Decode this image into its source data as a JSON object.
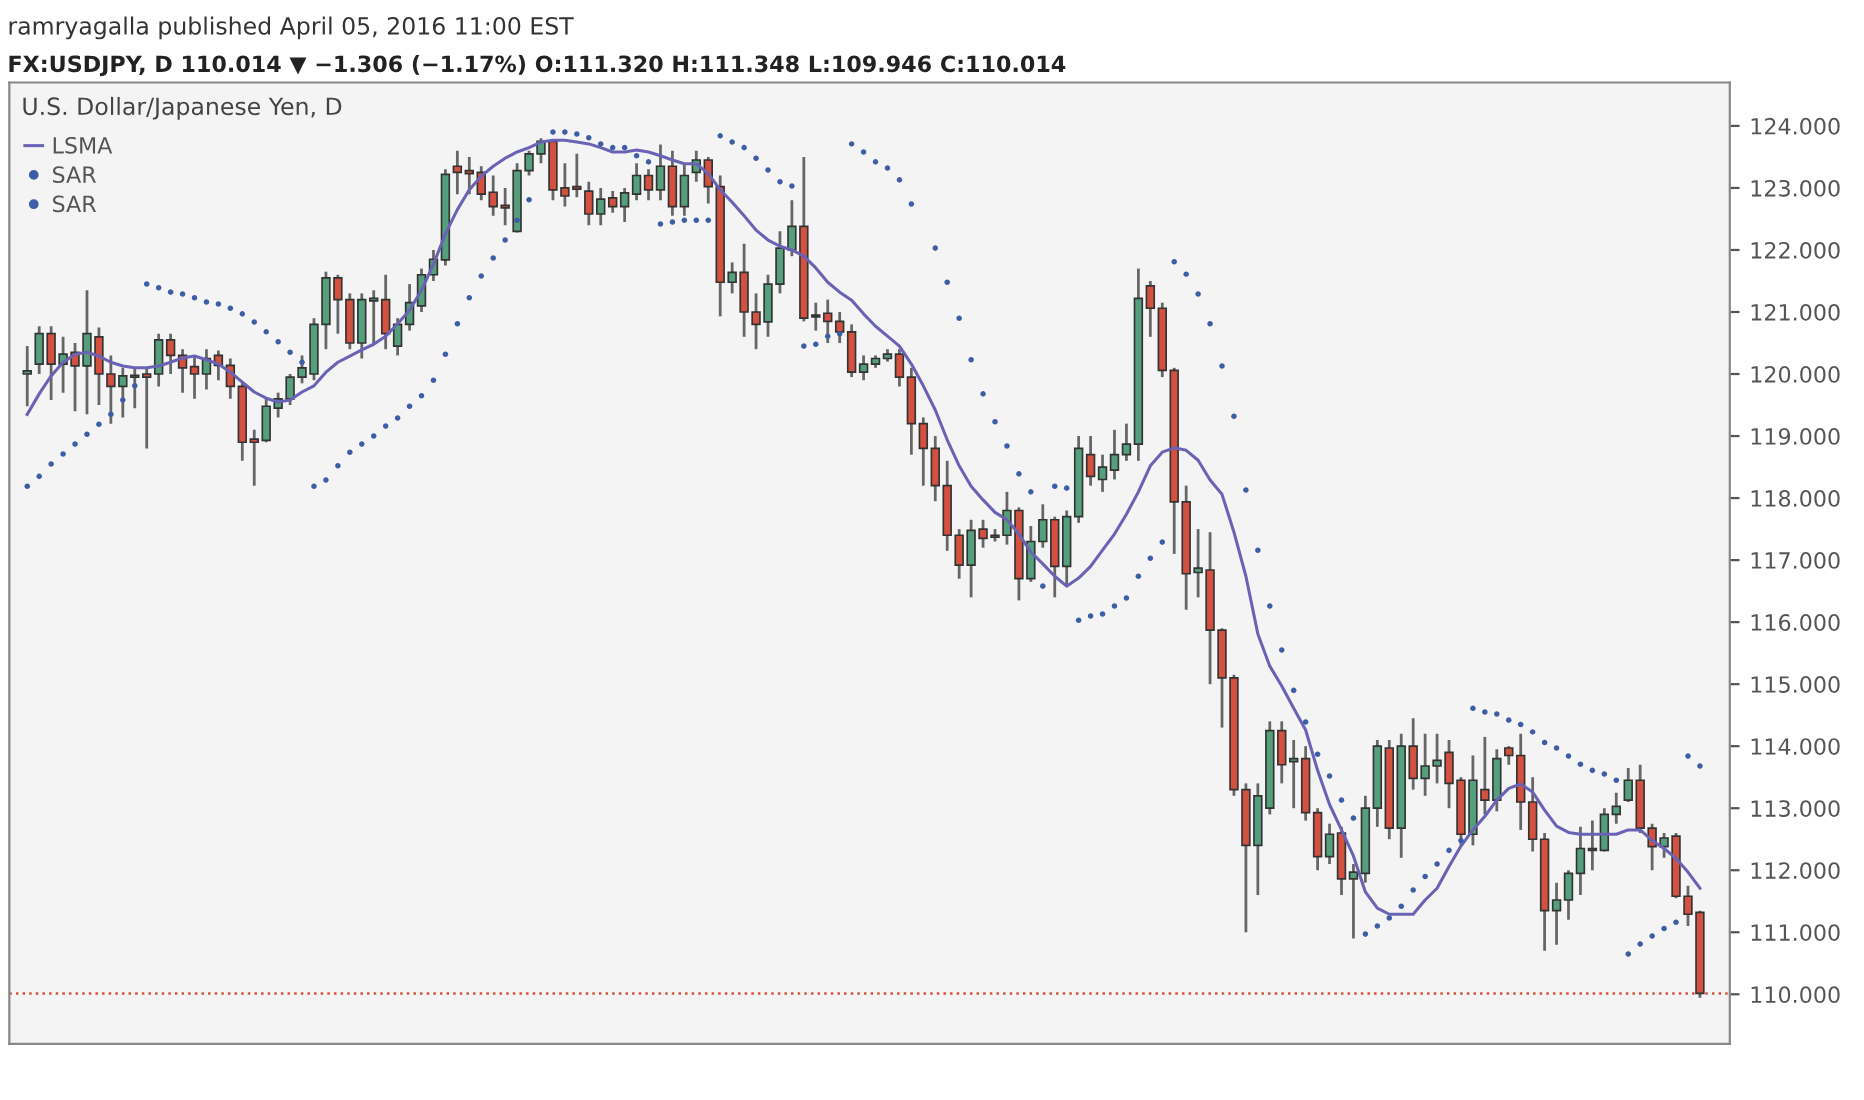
{
  "chart_data": {
    "type": "candlestick",
    "title": "U.S. Dollar/Japanese Yen, D",
    "subtitle": "ramryagalla published April 05, 2016 11:00 EST",
    "annotations": [
      "FX:USDJPY, D 110.014 ▼ −1.306 (−1.17%) O:111.320 H:111.348 L:109.946 C:110.014"
    ],
    "categories": [
      null,
      null,
      null,
      null,
      null,
      null,
      null,
      null,
      null,
      null,
      null,
      null,
      null,
      null,
      null,
      null,
      null,
      null,
      null,
      null,
      null,
      null,
      null,
      null,
      null,
      null,
      null,
      null,
      null,
      null,
      null,
      null,
      null,
      null,
      null,
      null,
      null,
      null,
      null,
      null,
      null,
      null,
      null,
      null,
      null,
      null,
      null,
      null,
      null,
      null,
      null,
      null,
      null,
      null,
      null,
      null,
      null,
      null,
      null,
      null,
      null,
      null,
      null,
      null,
      null,
      null,
      null,
      null,
      null,
      null,
      null,
      null,
      null,
      null,
      null,
      null,
      null,
      null,
      null,
      null,
      null,
      null,
      null,
      null,
      null,
      null,
      null,
      null,
      null,
      null,
      null,
      null,
      null,
      null,
      null,
      null,
      null,
      null,
      null,
      null,
      null,
      null,
      null,
      null,
      null,
      null,
      null,
      null,
      null,
      null,
      null,
      null,
      null,
      null,
      null,
      null,
      null,
      null,
      null,
      null,
      null,
      null,
      null,
      null,
      null,
      null,
      null,
      null,
      null,
      null,
      null,
      null,
      null,
      null,
      null,
      null,
      null,
      null,
      null,
      null,
      null
    ],
    "colors": [
      "#55a07c",
      "#55a07c",
      "#d4513f",
      "#55a07c",
      "#d4513f",
      "#55a07c",
      "#d4513f",
      "#d4513f",
      "#55a07c",
      "#55a07c",
      "#d4513f",
      "#55a07c",
      "#d4513f",
      "#d4513f",
      "#d4513f",
      "#55a07c",
      "#d4513f",
      "#d4513f",
      "#d4513f",
      "#d4513f",
      "#55a07c",
      "#55a07c",
      "#55a07c",
      "#55a07c",
      "#55a07c",
      "#55a07c",
      "#d4513f",
      "#d4513f",
      "#55a07c",
      "#55a07c",
      "#d4513f",
      "#55a07c",
      "#55a07c",
      "#55a07c",
      "#55a07c",
      "#55a07c",
      "#d4513f",
      "#d4513f",
      "#d4513f",
      "#d4513f",
      "#d4513f",
      "#55a07c",
      "#55a07c",
      "#55a07c",
      "#d4513f",
      "#d4513f",
      "#d4513f",
      "#d4513f",
      "#55a07c",
      "#d4513f",
      "#55a07c",
      "#55a07c",
      "#d4513f",
      "#55a07c",
      "#d4513f",
      "#55a07c",
      "#55a07c",
      "#d4513f",
      "#d4513f",
      "#55a07c",
      "#d4513f",
      "#d4513f",
      "#55a07c",
      "#55a07c",
      "#55a07c",
      "#d4513f",
      "#d4513f",
      "#d4513f",
      "#d4513f",
      "#d4513f",
      "#55a07c",
      "#55a07c",
      "#55a07c",
      "#d4513f",
      "#d4513f",
      "#d4513f",
      "#d4513f",
      "#d4513f",
      "#d4513f",
      "#55a07c",
      "#d4513f",
      "#55a07c",
      "#55a07c",
      "#d4513f",
      "#55a07c",
      "#55a07c",
      "#d4513f",
      "#55a07c",
      "#55a07c",
      "#d4513f",
      "#55a07c",
      "#55a07c",
      "#55a07c",
      "#55a07c",
      "#d4513f",
      "#d4513f",
      "#d4513f",
      "#d4513f",
      "#55a07c",
      "#d4513f",
      "#d4513f",
      "#d4513f",
      "#d4513f",
      "#55a07c",
      "#55a07c",
      "#d4513f",
      "#55a07c",
      "#d4513f",
      "#d4513f",
      "#55a07c",
      "#d4513f",
      "#55a07c",
      "#55a07c",
      "#55a07c",
      "#d4513f",
      "#55a07c",
      "#d4513f",
      "#55a07c",
      "#55a07c",
      "#d4513f",
      "#d4513f",
      "#55a07c",
      "#d4513f",
      "#55a07c",
      "#d4513f",
      "#d4513f",
      "#d4513f",
      "#d4513f",
      "#55a07c",
      "#55a07c",
      "#55a07c",
      "#55a07c",
      "#55a07c",
      "#55a07c",
      "#55a07c",
      "#d4513f",
      "#d4513f",
      "#55a07c",
      "#d4513f",
      "#d4513f",
      "#d4513f"
    ],
    "ohlc": [
      [
        120.0,
        120.45,
        119.48,
        120.05
      ],
      [
        120.16,
        120.77,
        120.0,
        120.65
      ],
      [
        120.65,
        120.77,
        119.58,
        120.16
      ],
      [
        120.16,
        120.6,
        119.7,
        120.32
      ],
      [
        120.35,
        120.5,
        119.4,
        120.13
      ],
      [
        120.13,
        121.35,
        119.35,
        120.65
      ],
      [
        120.6,
        120.75,
        119.5,
        120.0
      ],
      [
        120.0,
        120.3,
        119.2,
        119.8
      ],
      [
        119.8,
        120.1,
        119.3,
        119.97
      ],
      [
        119.95,
        120.1,
        119.45,
        119.98
      ],
      [
        120.0,
        120.1,
        118.8,
        119.95
      ],
      [
        120.0,
        120.65,
        119.8,
        120.55
      ],
      [
        120.55,
        120.65,
        120.0,
        120.3
      ],
      [
        120.3,
        120.4,
        119.7,
        120.1
      ],
      [
        120.12,
        120.3,
        119.6,
        120.0
      ],
      [
        120.0,
        120.4,
        119.75,
        120.25
      ],
      [
        120.3,
        120.38,
        119.9,
        120.14
      ],
      [
        120.14,
        120.25,
        119.6,
        119.8
      ],
      [
        119.8,
        119.85,
        118.6,
        118.9
      ],
      [
        118.95,
        119.1,
        118.2,
        118.9
      ],
      [
        118.93,
        119.6,
        118.9,
        119.48
      ],
      [
        119.45,
        119.7,
        119.3,
        119.6
      ],
      [
        119.6,
        120.0,
        119.5,
        119.95
      ],
      [
        119.95,
        120.3,
        119.85,
        120.1
      ],
      [
        120.0,
        120.9,
        119.9,
        120.8
      ],
      [
        120.8,
        121.65,
        120.4,
        121.55
      ],
      [
        121.55,
        121.6,
        120.65,
        121.2
      ],
      [
        121.2,
        121.3,
        120.4,
        120.5
      ],
      [
        120.5,
        121.3,
        120.25,
        121.2
      ],
      [
        121.18,
        121.35,
        120.5,
        121.22
      ],
      [
        121.2,
        121.6,
        120.4,
        120.65
      ],
      [
        120.45,
        120.9,
        120.3,
        120.8
      ],
      [
        120.8,
        121.45,
        120.7,
        121.15
      ],
      [
        121.1,
        121.7,
        121.0,
        121.6
      ],
      [
        121.6,
        122.0,
        121.5,
        121.85
      ],
      [
        121.84,
        123.3,
        121.75,
        123.22
      ],
      [
        123.35,
        123.6,
        122.9,
        123.25
      ],
      [
        123.28,
        123.5,
        122.9,
        123.23
      ],
      [
        123.25,
        123.35,
        122.8,
        122.9
      ],
      [
        122.93,
        123.2,
        122.55,
        122.7
      ],
      [
        122.72,
        123.0,
        122.4,
        122.68
      ],
      [
        122.3,
        123.4,
        122.28,
        123.28
      ],
      [
        123.28,
        123.6,
        123.2,
        123.55
      ],
      [
        123.55,
        123.8,
        123.4,
        123.75
      ],
      [
        123.75,
        123.78,
        122.8,
        122.97
      ],
      [
        123.0,
        123.4,
        122.7,
        122.87
      ],
      [
        123.02,
        123.55,
        122.85,
        122.98
      ],
      [
        122.95,
        123.1,
        122.4,
        122.58
      ],
      [
        122.58,
        123.0,
        122.4,
        122.82
      ],
      [
        122.84,
        122.95,
        122.6,
        122.7
      ],
      [
        122.7,
        123.0,
        122.45,
        122.92
      ],
      [
        122.9,
        123.4,
        122.8,
        123.2
      ],
      [
        123.2,
        123.3,
        122.8,
        122.97
      ],
      [
        122.97,
        123.7,
        122.8,
        123.35
      ],
      [
        123.35,
        123.6,
        122.55,
        122.7
      ],
      [
        122.7,
        123.4,
        122.55,
        123.2
      ],
      [
        123.25,
        123.6,
        123.1,
        123.45
      ],
      [
        123.45,
        123.5,
        122.75,
        123.02
      ],
      [
        123.02,
        123.2,
        120.93,
        121.48
      ],
      [
        121.48,
        121.8,
        121.3,
        121.64
      ],
      [
        121.64,
        122.1,
        120.6,
        121.0
      ],
      [
        121.0,
        121.3,
        120.4,
        120.8
      ],
      [
        120.84,
        121.6,
        120.6,
        121.45
      ],
      [
        121.45,
        122.3,
        121.3,
        122.03
      ],
      [
        122.0,
        122.8,
        121.9,
        122.38
      ],
      [
        122.38,
        123.5,
        120.85,
        120.9
      ],
      [
        120.95,
        121.15,
        120.7,
        120.92
      ],
      [
        120.98,
        121.2,
        120.5,
        120.85
      ],
      [
        120.85,
        121.0,
        120.5,
        120.68
      ],
      [
        120.68,
        120.8,
        119.95,
        120.03
      ],
      [
        120.03,
        120.3,
        119.9,
        120.16
      ],
      [
        120.16,
        120.3,
        120.1,
        120.25
      ],
      [
        120.25,
        120.4,
        120.2,
        120.32
      ],
      [
        120.32,
        120.4,
        119.8,
        119.95
      ],
      [
        119.95,
        120.1,
        118.7,
        119.2
      ],
      [
        119.2,
        119.3,
        118.2,
        118.8
      ],
      [
        118.8,
        119.0,
        117.95,
        118.2
      ],
      [
        118.2,
        118.6,
        117.15,
        117.4
      ],
      [
        117.4,
        117.5,
        116.7,
        116.92
      ],
      [
        116.92,
        117.65,
        116.4,
        117.48
      ],
      [
        117.5,
        117.65,
        117.2,
        117.35
      ],
      [
        117.37,
        117.5,
        117.3,
        117.4
      ],
      [
        117.4,
        118.1,
        117.25,
        117.8
      ],
      [
        117.8,
        117.85,
        116.35,
        116.7
      ],
      [
        116.7,
        117.55,
        116.65,
        117.3
      ],
      [
        117.3,
        117.9,
        117.2,
        117.65
      ],
      [
        117.65,
        117.7,
        116.4,
        116.9
      ],
      [
        116.9,
        117.8,
        116.6,
        117.7
      ],
      [
        117.7,
        119.0,
        117.6,
        118.8
      ],
      [
        118.7,
        119.0,
        118.2,
        118.35
      ],
      [
        118.3,
        118.7,
        118.1,
        118.5
      ],
      [
        118.45,
        119.1,
        118.3,
        118.7
      ],
      [
        118.7,
        119.2,
        118.6,
        118.87
      ],
      [
        118.87,
        121.7,
        118.6,
        121.22
      ],
      [
        121.42,
        121.5,
        120.6,
        121.06
      ],
      [
        121.06,
        121.15,
        119.95,
        120.06
      ],
      [
        120.06,
        120.1,
        117.1,
        117.94
      ],
      [
        117.94,
        118.2,
        116.2,
        116.78
      ],
      [
        116.8,
        117.5,
        116.4,
        116.87
      ],
      [
        116.84,
        117.45,
        115.0,
        115.87
      ],
      [
        115.87,
        115.9,
        114.3,
        115.1
      ],
      [
        115.1,
        115.15,
        113.2,
        113.3
      ],
      [
        113.3,
        113.4,
        111.0,
        112.4
      ],
      [
        112.4,
        113.4,
        111.6,
        113.2
      ],
      [
        113.0,
        114.4,
        112.9,
        114.25
      ],
      [
        114.25,
        114.4,
        113.4,
        113.7
      ],
      [
        113.75,
        114.1,
        113.0,
        113.8
      ],
      [
        113.8,
        114.0,
        112.8,
        112.93
      ],
      [
        112.93,
        113.0,
        112.0,
        112.22
      ],
      [
        112.22,
        112.75,
        112.1,
        112.58
      ],
      [
        112.6,
        112.7,
        111.6,
        111.86
      ],
      [
        111.86,
        112.1,
        110.9,
        111.97
      ],
      [
        111.95,
        113.2,
        111.8,
        113.0
      ],
      [
        113.0,
        114.1,
        112.7,
        114.0
      ],
      [
        113.97,
        114.1,
        112.5,
        112.68
      ],
      [
        112.68,
        114.2,
        112.2,
        114.0
      ],
      [
        114.0,
        114.45,
        113.3,
        113.48
      ],
      [
        113.48,
        114.2,
        113.2,
        113.68
      ],
      [
        113.68,
        114.2,
        113.4,
        113.77
      ],
      [
        113.9,
        114.1,
        113.0,
        113.4
      ],
      [
        113.45,
        113.5,
        112.4,
        112.58
      ],
      [
        112.58,
        113.85,
        112.4,
        113.45
      ],
      [
        113.3,
        114.15,
        112.9,
        113.13
      ],
      [
        113.13,
        113.95,
        112.95,
        113.8
      ],
      [
        113.97,
        114.0,
        113.7,
        113.85
      ],
      [
        113.85,
        114.2,
        112.65,
        113.1
      ],
      [
        113.1,
        113.5,
        112.3,
        112.5
      ],
      [
        112.5,
        112.6,
        110.7,
        111.35
      ],
      [
        111.35,
        111.8,
        110.8,
        111.52
      ],
      [
        111.52,
        112.0,
        111.2,
        111.95
      ],
      [
        111.95,
        112.7,
        111.6,
        112.35
      ],
      [
        112.32,
        112.8,
        112.0,
        112.35
      ],
      [
        112.32,
        113.0,
        112.3,
        112.9
      ],
      [
        112.9,
        113.25,
        112.75,
        113.03
      ],
      [
        113.13,
        113.65,
        113.1,
        113.45
      ],
      [
        113.45,
        113.7,
        112.6,
        112.68
      ],
      [
        112.68,
        112.75,
        112.0,
        112.38
      ],
      [
        112.38,
        112.6,
        112.2,
        112.52
      ],
      [
        112.55,
        112.6,
        111.55,
        111.58
      ],
      [
        111.58,
        111.75,
        111.1,
        111.29
      ],
      [
        111.32,
        111.348,
        109.946,
        110.014
      ]
    ],
    "series": [
      {
        "name": "LSMA",
        "type": "line",
        "color": "#6a63b5",
        "values": [
          119.35,
          119.68,
          119.97,
          120.19,
          120.32,
          120.35,
          120.29,
          120.19,
          120.13,
          120.1,
          120.1,
          120.13,
          120.19,
          120.26,
          120.29,
          120.23,
          120.16,
          120.03,
          119.87,
          119.71,
          119.61,
          119.55,
          119.58,
          119.71,
          119.81,
          120.03,
          120.19,
          120.29,
          120.39,
          120.48,
          120.61,
          120.81,
          121.03,
          121.35,
          121.77,
          122.26,
          122.65,
          122.97,
          123.19,
          123.35,
          123.48,
          123.58,
          123.65,
          123.74,
          123.77,
          123.77,
          123.74,
          123.71,
          123.65,
          123.58,
          123.58,
          123.61,
          123.58,
          123.52,
          123.45,
          123.39,
          123.39,
          123.23,
          122.97,
          122.77,
          122.55,
          122.32,
          122.16,
          122.06,
          122.0,
          121.9,
          121.71,
          121.48,
          121.32,
          121.19,
          120.97,
          120.77,
          120.61,
          120.45,
          120.16,
          119.81,
          119.42,
          118.94,
          118.52,
          118.19,
          117.97,
          117.77,
          117.65,
          117.42,
          117.13,
          116.94,
          116.74,
          116.58,
          116.71,
          116.9,
          117.16,
          117.42,
          117.74,
          118.1,
          118.52,
          118.74,
          118.81,
          118.77,
          118.61,
          118.29,
          118.06,
          117.45,
          116.74,
          115.81,
          115.29,
          114.97,
          114.61,
          114.26,
          113.61,
          113.06,
          112.65,
          112.23,
          111.65,
          111.39,
          111.29,
          111.29,
          111.29,
          111.52,
          111.71,
          112.06,
          112.39,
          112.65,
          112.87,
          113.13,
          113.32,
          113.39,
          113.26,
          112.97,
          112.71,
          112.61,
          112.58,
          112.58,
          112.58,
          112.58,
          112.65,
          112.65,
          112.48,
          112.35,
          112.19,
          111.97,
          111.71
        ]
      },
      {
        "name": "SAR",
        "type": "scatter",
        "color": "#3d5ea6",
        "values": [
          118.19,
          118.35,
          118.55,
          118.71,
          118.87,
          119.03,
          119.19,
          119.35,
          119.58,
          119.81,
          121.45,
          121.39,
          121.32,
          121.29,
          121.23,
          121.16,
          121.13,
          121.06,
          120.97,
          120.84,
          120.68,
          120.52,
          120.35,
          120.19,
          118.19,
          118.29,
          118.52,
          118.74,
          118.87,
          119.0,
          119.16,
          119.29,
          119.48,
          119.65,
          119.9,
          120.32,
          120.81,
          121.23,
          121.58,
          121.87,
          122.16,
          122.48,
          122.81,
          null,
          123.9,
          123.9,
          123.87,
          123.81,
          123.71,
          123.65,
          123.65,
          123.52,
          123.42,
          122.42,
          122.45,
          122.48,
          122.48,
          122.48,
          123.84,
          123.74,
          123.65,
          123.48,
          123.29,
          123.1,
          123.03,
          120.45,
          120.48,
          120.61,
          120.65,
          123.71,
          123.58,
          123.42,
          123.32,
          123.13,
          122.74,
          null,
          122.03,
          121.48,
          120.9,
          120.23,
          119.68,
          119.23,
          118.84,
          118.39,
          118.1,
          116.58,
          null,
          null,
          116.03,
          116.1,
          116.13,
          116.26,
          116.39,
          116.74,
          117.03,
          117.29,
          121.81,
          121.61,
          121.29,
          120.81,
          120.13,
          119.32,
          118.13,
          117.16,
          116.26,
          115.55,
          114.9,
          114.39,
          113.87,
          113.52,
          113.13,
          112.84,
          110.97,
          111.1,
          111.23,
          111.42,
          111.68,
          111.9,
          112.1,
          112.32,
          112.48,
          114.61,
          114.55,
          114.52,
          114.42,
          114.35,
          114.23,
          114.06,
          113.97,
          113.84,
          113.71,
          113.61,
          113.55,
          113.45,
          110.65,
          110.81,
          110.94,
          111.06,
          111.16,
          113.84,
          113.68
        ]
      },
      {
        "name": "SAR",
        "type": "scatter",
        "color": "#3d5ea6",
        "values": [
          null,
          null,
          null,
          null,
          null,
          null,
          null,
          null,
          null,
          null,
          null,
          null,
          null,
          null,
          null,
          null,
          null,
          null,
          null,
          null,
          null,
          null,
          null,
          null,
          null,
          null,
          null,
          null,
          null,
          null,
          null,
          null,
          null,
          null,
          null,
          null,
          null,
          null,
          null,
          null,
          null,
          null,
          null,
          null,
          null,
          null,
          null,
          null,
          null,
          null,
          null,
          null,
          null,
          null,
          null,
          null,
          null,
          null,
          null,
          null,
          null,
          null,
          null,
          null,
          null,
          null,
          null,
          null,
          null,
          null,
          null,
          null,
          null,
          null,
          null,
          null,
          null,
          null,
          null,
          null,
          null,
          null,
          null,
          null,
          null,
          null,
          118.19,
          118.16,
          null,
          null,
          null,
          null,
          null,
          null,
          null,
          null,
          null,
          null,
          null,
          null,
          null,
          null,
          null,
          null,
          null,
          null,
          null,
          null,
          null,
          null,
          null,
          null,
          null,
          null,
          null,
          null,
          null,
          null,
          null,
          null,
          null,
          null,
          null,
          null,
          null,
          null,
          null,
          null,
          null,
          null,
          null,
          null,
          null,
          null,
          null,
          null,
          null,
          null,
          null,
          null,
          null
        ]
      }
    ],
    "ylim": [
      109.2,
      124.7
    ],
    "yticks": [
      {
        "value": 110,
        "label": "110.000"
      },
      {
        "value": 111,
        "label": "111.000"
      },
      {
        "value": 112,
        "label": "112.000"
      },
      {
        "value": 113,
        "label": "113.000"
      },
      {
        "value": 114,
        "label": "114.000"
      },
      {
        "value": 115,
        "label": "115.000"
      },
      {
        "value": 116,
        "label": "116.000"
      },
      {
        "value": 117,
        "label": "117.000"
      },
      {
        "value": 118,
        "label": "118.000"
      },
      {
        "value": 119,
        "label": "119.000"
      },
      {
        "value": 120,
        "label": "120.000"
      },
      {
        "value": 121,
        "label": "121.000"
      },
      {
        "value": 122,
        "label": "122.000"
      },
      {
        "value": 123,
        "label": "123.000"
      },
      {
        "value": 124,
        "label": "124.000"
      }
    ],
    "ref_lines": [
      {
        "axis": "y",
        "value": 110.014,
        "color": "#d4513f",
        "line_style": "dotted"
      }
    ],
    "tick_labels": "y",
    "legend": "top left"
  }
}
